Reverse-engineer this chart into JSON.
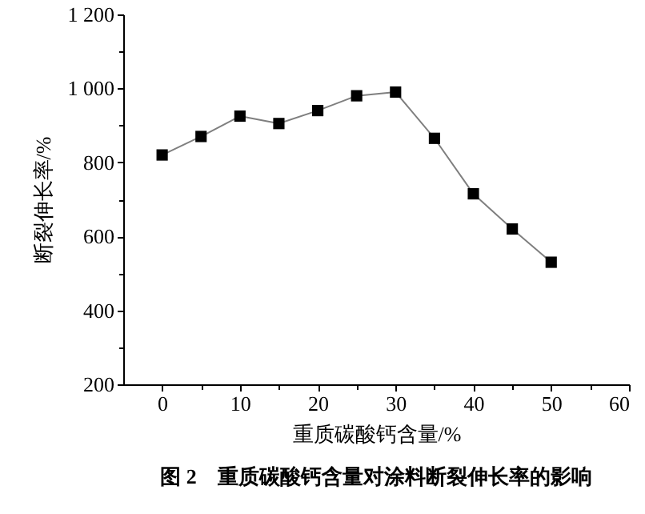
{
  "chart_data": {
    "type": "line",
    "title": "图 2　重质碳酸钙含量对涂料断裂伸长率的影响",
    "xlabel": "重质碳酸钙含量/%",
    "ylabel": "断裂伸长率/%",
    "x": [
      0,
      5,
      10,
      15,
      20,
      25,
      30,
      35,
      40,
      45,
      50
    ],
    "series": [
      {
        "color": "#000000",
        "values": [
          820,
          870,
          925,
          905,
          940,
          980,
          990,
          865,
          715,
          620,
          530
        ]
      }
    ],
    "xlim": [
      -5,
      60
    ],
    "xticks": [
      0,
      {
        "value": 5,
        "label": null
      },
      10,
      {
        "value": 15,
        "label": null
      },
      20,
      {
        "value": 25,
        "label": null
      },
      30,
      {
        "value": 35,
        "label": null
      },
      40,
      {
        "value": 45,
        "label": null
      },
      50,
      {
        "value": 55,
        "label": null
      },
      60
    ],
    "ylim": [
      200,
      1200
    ],
    "yticks": [
      200,
      {
        "value": 300,
        "label": null
      },
      400,
      {
        "value": 500,
        "label": null
      },
      600,
      {
        "value": 700,
        "label": null
      },
      800,
      {
        "value": 900,
        "label": null
      },
      {
        "value": 1000,
        "label": "1 000"
      },
      {
        "value": 1100,
        "label": null
      },
      {
        "value": 1200,
        "label": "1 200"
      }
    ],
    "grid": false,
    "marker": "square",
    "line_style": "solid"
  }
}
